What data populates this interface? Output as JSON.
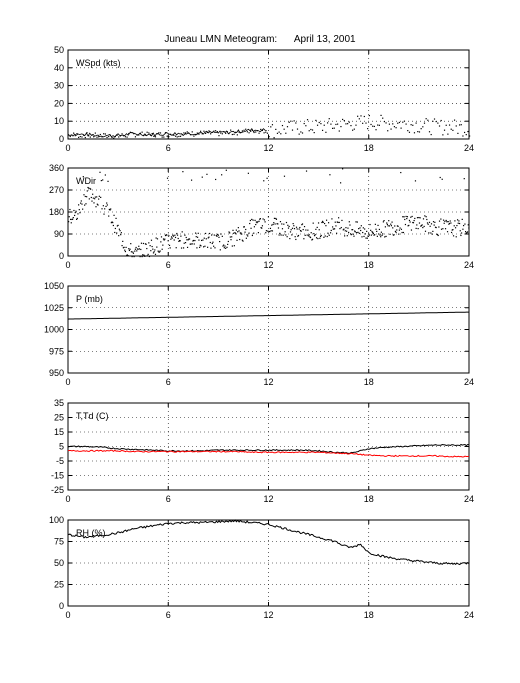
{
  "title": {
    "station": "Juneau LMN Meteogram:",
    "date": "April 13, 2001"
  },
  "chart_data": [
    {
      "type": "scatter",
      "id": "wspd",
      "ylabel": "WSpd (kts)",
      "xlim": [
        0,
        24
      ],
      "ylim": [
        0,
        50
      ],
      "yticks": [
        0,
        10,
        20,
        30,
        40,
        50
      ],
      "xticks": [
        0,
        6,
        12,
        18,
        24
      ],
      "grid": true,
      "series": [
        {
          "color": "#000000",
          "style": "line+dots",
          "x": [
            0,
            1,
            2,
            3,
            4,
            5,
            6,
            7,
            8,
            9,
            10,
            11,
            12,
            13,
            14,
            15,
            16,
            17,
            18,
            19,
            20,
            21,
            22,
            23,
            24
          ],
          "y": [
            2.5,
            2.5,
            2,
            2,
            3,
            2.5,
            3,
            3,
            3.5,
            3.5,
            4,
            5,
            5,
            6,
            7,
            7,
            8,
            9,
            10,
            9,
            9,
            8,
            7,
            7,
            6
          ]
        }
      ]
    },
    {
      "type": "scatter",
      "id": "wdir",
      "ylabel": "WDir",
      "xlim": [
        0,
        24
      ],
      "ylim": [
        0,
        360
      ],
      "yticks": [
        0,
        90,
        180,
        270,
        360
      ],
      "xticks": [
        0,
        6,
        12,
        18,
        24
      ],
      "grid": true,
      "series": [
        {
          "color": "#000000",
          "style": "dots",
          "x": [
            0,
            0.5,
            1,
            1.5,
            2,
            2.5,
            3,
            3.5,
            4,
            5,
            6,
            7,
            8,
            9,
            10,
            11,
            12,
            13,
            14,
            15,
            16,
            17,
            18,
            19,
            20,
            21,
            22,
            23,
            24
          ],
          "y": [
            160,
            170,
            250,
            250,
            210,
            170,
            100,
            30,
            10,
            40,
            60,
            70,
            65,
            60,
            80,
            120,
            130,
            110,
            100,
            105,
            130,
            110,
            100,
            115,
            130,
            140,
            120,
            115,
            120
          ]
        }
      ]
    },
    {
      "type": "line",
      "id": "pressure",
      "ylabel": "P (mb)",
      "xlim": [
        0,
        24
      ],
      "ylim": [
        950,
        1050
      ],
      "yticks": [
        950,
        975,
        1000,
        1025,
        1050
      ],
      "xticks": [
        0,
        6,
        12,
        18,
        24
      ],
      "grid": true,
      "series": [
        {
          "color": "#000000",
          "x": [
            0,
            3,
            6,
            9,
            12,
            15,
            18,
            21,
            24
          ],
          "y": [
            1012,
            1013,
            1014,
            1015,
            1016,
            1017,
            1018,
            1019,
            1020
          ]
        }
      ]
    },
    {
      "type": "line",
      "id": "temp",
      "ylabel": "T,Td (C)",
      "xlim": [
        0,
        24
      ],
      "ylim": [
        -25,
        35
      ],
      "yticks": [
        -25,
        -15,
        -5,
        5,
        15,
        25,
        35
      ],
      "xticks": [
        0,
        6,
        12,
        18,
        24
      ],
      "grid": true,
      "series": [
        {
          "color": "#000000",
          "x": [
            0,
            1,
            2,
            3,
            4,
            5,
            6,
            7,
            8,
            9,
            10,
            11,
            12,
            13,
            14,
            15,
            16,
            17,
            18,
            19,
            20,
            21,
            22,
            23,
            24
          ],
          "y": [
            5,
            5,
            4.5,
            3.5,
            3,
            2.5,
            2,
            2,
            2,
            2.5,
            2.5,
            2.5,
            2.5,
            2.5,
            2.5,
            2,
            1,
            0.5,
            3.5,
            4.5,
            5,
            5.5,
            6,
            6,
            6
          ]
        },
        {
          "color": "#ff0000",
          "x": [
            0,
            1,
            2,
            3,
            4,
            5,
            6,
            7,
            8,
            9,
            10,
            11,
            12,
            13,
            14,
            15,
            16,
            17,
            18,
            19,
            20,
            21,
            22,
            23,
            24
          ],
          "y": [
            2,
            2,
            2,
            2,
            1.5,
            1.5,
            1.5,
            1.5,
            1.5,
            1.5,
            1.5,
            1,
            1,
            1,
            1,
            1,
            0.5,
            0,
            -1,
            -1.5,
            -1.5,
            -1.5,
            -1.5,
            -2,
            -2
          ]
        }
      ]
    },
    {
      "type": "line",
      "id": "rh",
      "ylabel": "RH (%)",
      "xlim": [
        0,
        24
      ],
      "ylim": [
        0,
        100
      ],
      "yticks": [
        0,
        25,
        50,
        75,
        100
      ],
      "xticks": [
        0,
        6,
        12,
        18,
        24
      ],
      "grid": true,
      "series": [
        {
          "color": "#000000",
          "x": [
            0,
            1,
            2,
            3,
            4,
            5,
            6,
            7,
            8,
            9,
            10,
            11,
            12,
            13,
            14,
            15,
            16,
            16.5,
            17,
            17.5,
            18,
            19,
            20,
            21,
            22,
            23,
            24
          ],
          "y": [
            83,
            80,
            82,
            85,
            90,
            93,
            96,
            97,
            97,
            98,
            99,
            97,
            95,
            90,
            85,
            80,
            75,
            70,
            68,
            72,
            62,
            57,
            54,
            52,
            50,
            49,
            50
          ]
        }
      ]
    }
  ]
}
